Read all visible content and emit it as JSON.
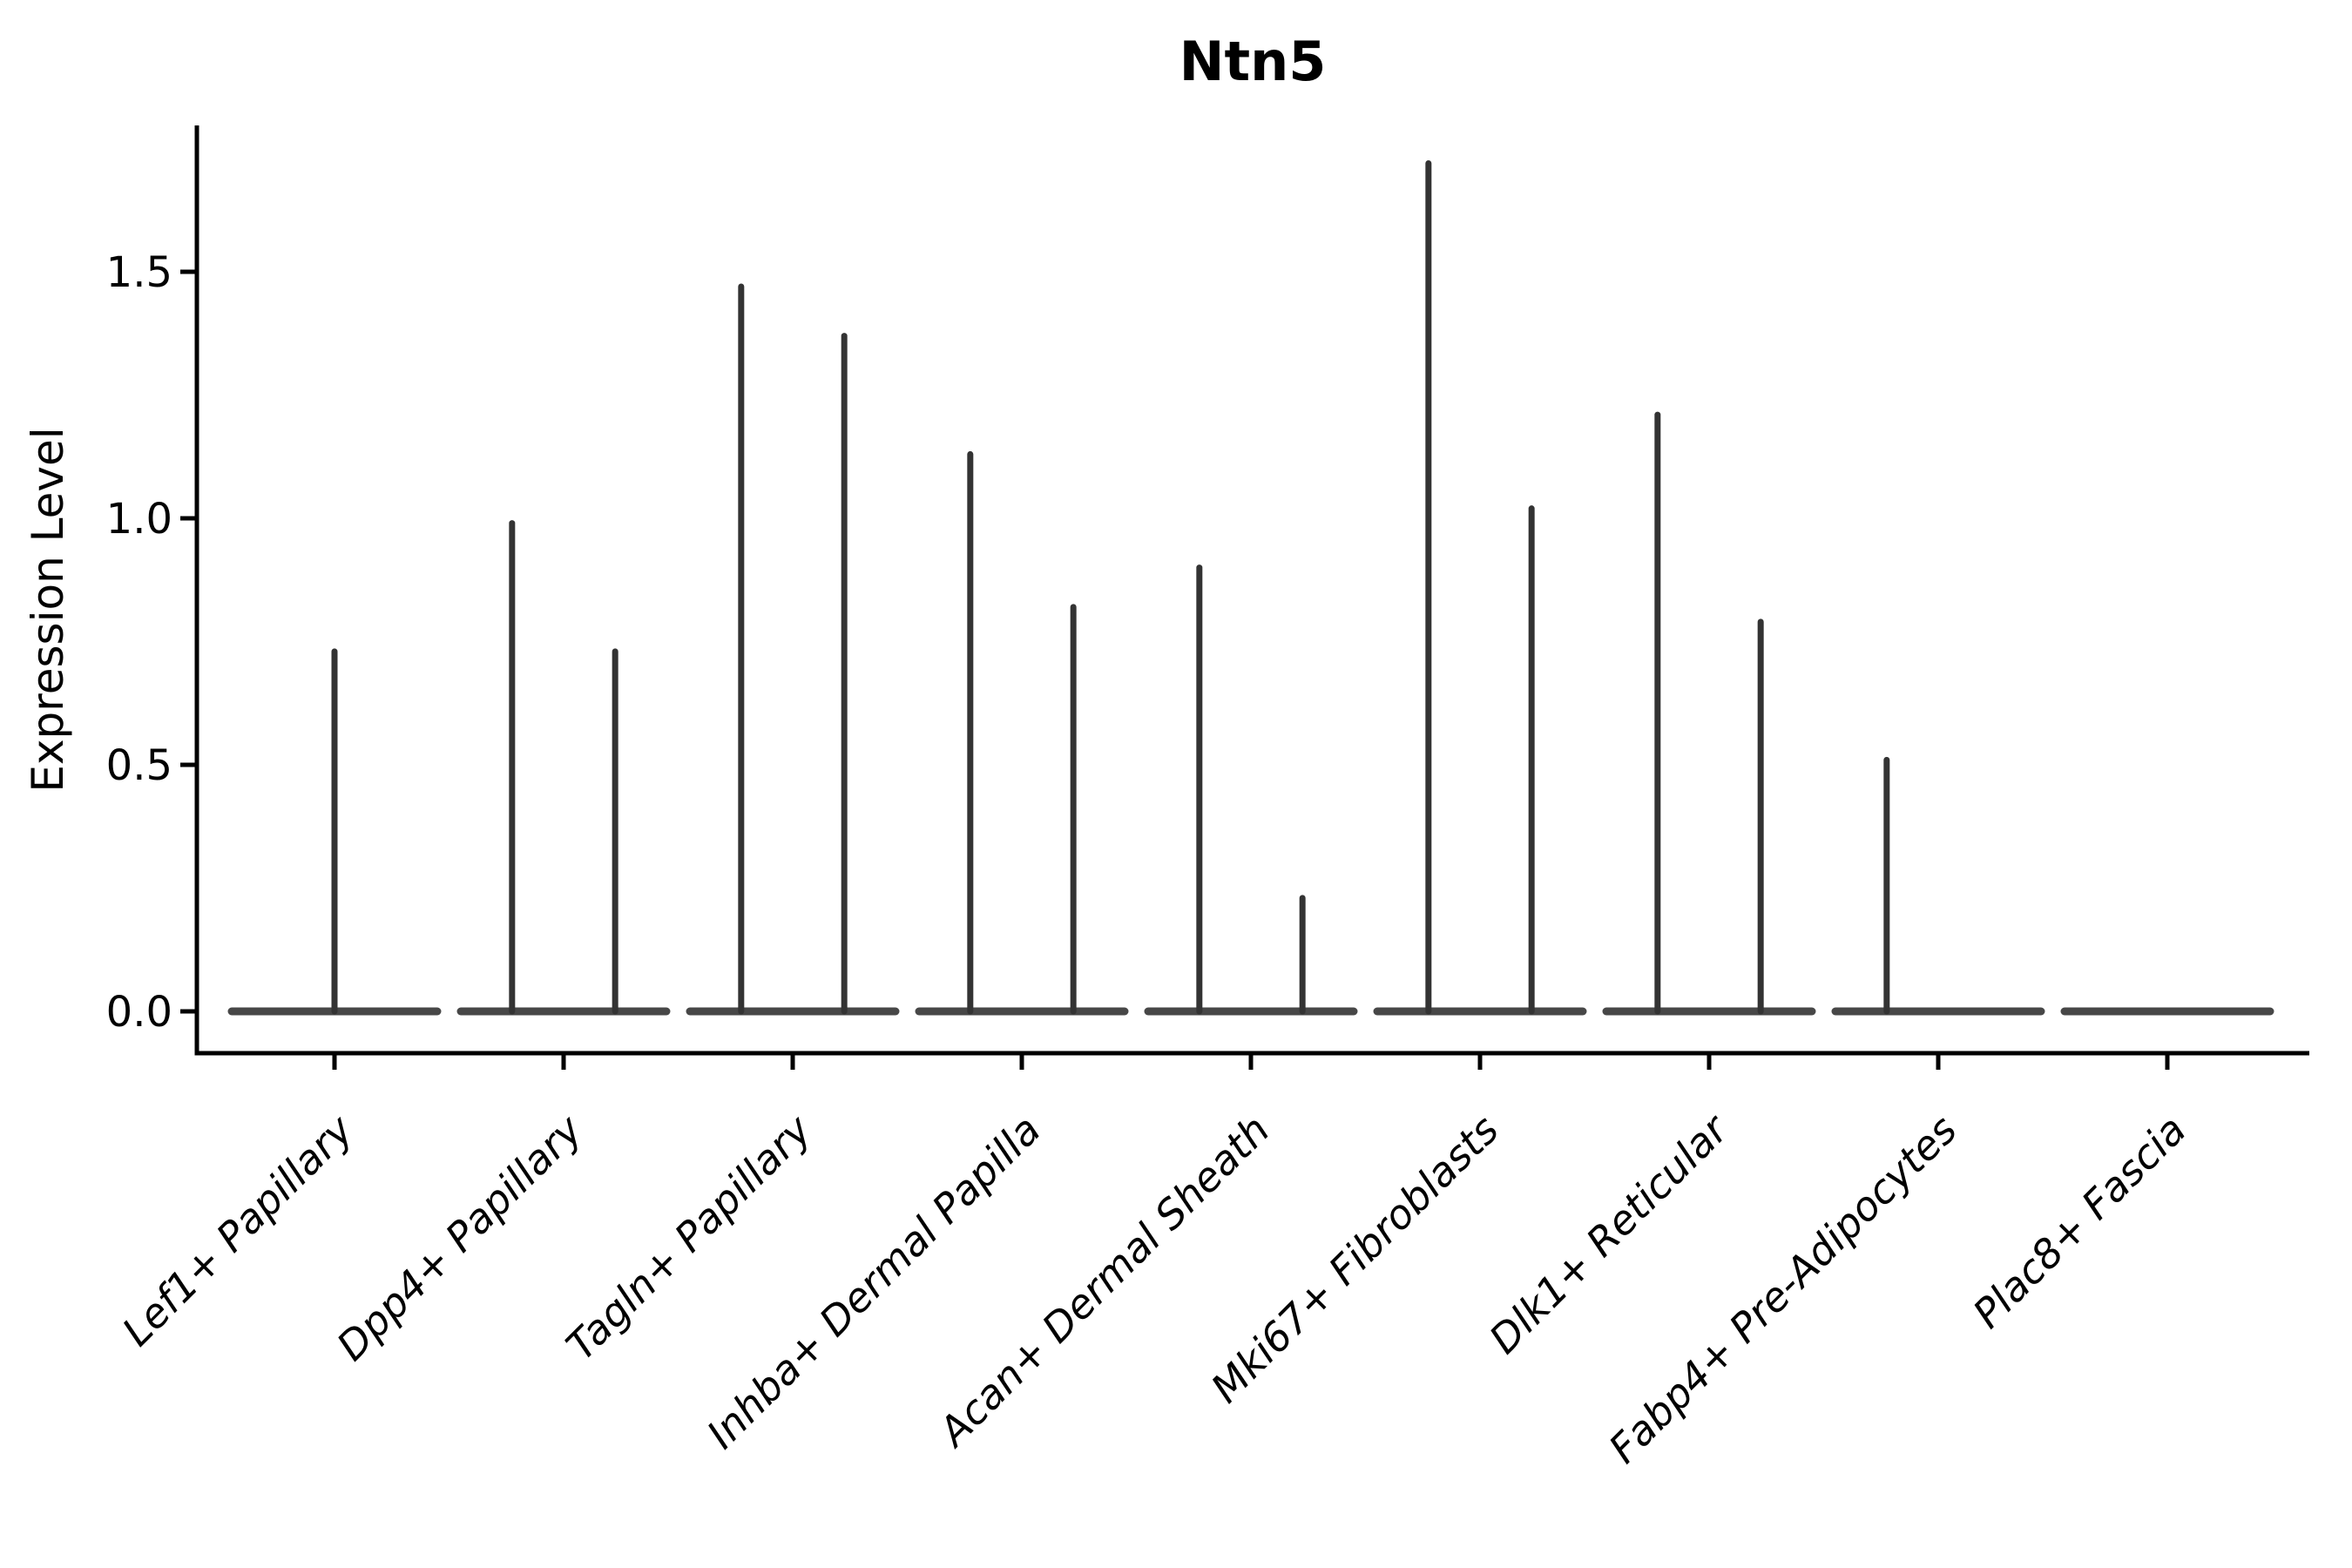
{
  "title": "Ntn5",
  "axes": {
    "ylabel": "Expression Level",
    "xlabel": ""
  },
  "colors": {
    "violin_baseline": "#474747",
    "violin_spike": "#333333",
    "axis": "#000000",
    "background": "#ffffff"
  },
  "chart_data": {
    "type": "violin",
    "title": "Ntn5",
    "ylabel": "Expression Level",
    "xlabel": "",
    "ylim": [
      -0.09,
      1.8
    ],
    "grid": false,
    "legend": "none",
    "yticks": [
      {
        "label": "0.0",
        "value": 0.0
      },
      {
        "label": "0.5",
        "value": 0.5
      },
      {
        "label": "1.0",
        "value": 1.0
      },
      {
        "label": "1.5",
        "value": 1.5
      }
    ],
    "categories": [
      "Lef1+ Papillary",
      "Dpp4+ Papillary",
      "Tagln+ Papillary",
      "Inhba+ Dermal Papilla",
      "Acan+ Dermal Sheath",
      "Mki67+ Fibroblasts",
      "Dlk1+ Reticular",
      "Fabp4+ Pre-Adipocytes",
      "Plac8+ Fascia"
    ],
    "violin_note": "Each category shows a flat density baseline at expression 0 spanning 0.9 of the slot; thin spikes rise to the maximum expression of each split group (offset = fraction of category slot).",
    "violins": [
      {
        "category": "Lef1+ Papillary",
        "baseline": 0.0,
        "spikes": [
          {
            "offset": 0.0,
            "max": 0.73
          }
        ]
      },
      {
        "category": "Dpp4+ Papillary",
        "baseline": 0.0,
        "spikes": [
          {
            "offset": -0.225,
            "max": 0.99
          },
          {
            "offset": 0.225,
            "max": 0.73
          }
        ]
      },
      {
        "category": "Tagln+ Papillary",
        "baseline": 0.0,
        "spikes": [
          {
            "offset": -0.225,
            "max": 1.47
          },
          {
            "offset": 0.225,
            "max": 1.37
          }
        ]
      },
      {
        "category": "Inhba+ Dermal Papilla",
        "baseline": 0.0,
        "spikes": [
          {
            "offset": -0.225,
            "max": 1.13
          },
          {
            "offset": 0.225,
            "max": 0.82
          }
        ]
      },
      {
        "category": "Acan+ Dermal Sheath",
        "baseline": 0.0,
        "spikes": [
          {
            "offset": -0.225,
            "max": 0.9
          },
          {
            "offset": 0.225,
            "max": 0.23
          }
        ]
      },
      {
        "category": "Mki67+ Fibroblasts",
        "baseline": 0.0,
        "spikes": [
          {
            "offset": -0.225,
            "max": 1.72
          },
          {
            "offset": 0.225,
            "max": 1.02
          }
        ]
      },
      {
        "category": "Dlk1+ Reticular",
        "baseline": 0.0,
        "spikes": [
          {
            "offset": -0.225,
            "max": 1.21
          },
          {
            "offset": 0.225,
            "max": 0.79
          }
        ]
      },
      {
        "category": "Fabp4+ Pre-Adipocytes",
        "baseline": 0.0,
        "spikes": [
          {
            "offset": -0.225,
            "max": 0.51
          }
        ]
      },
      {
        "category": "Plac8+ Fascia",
        "baseline": 0.0,
        "spikes": []
      }
    ]
  }
}
